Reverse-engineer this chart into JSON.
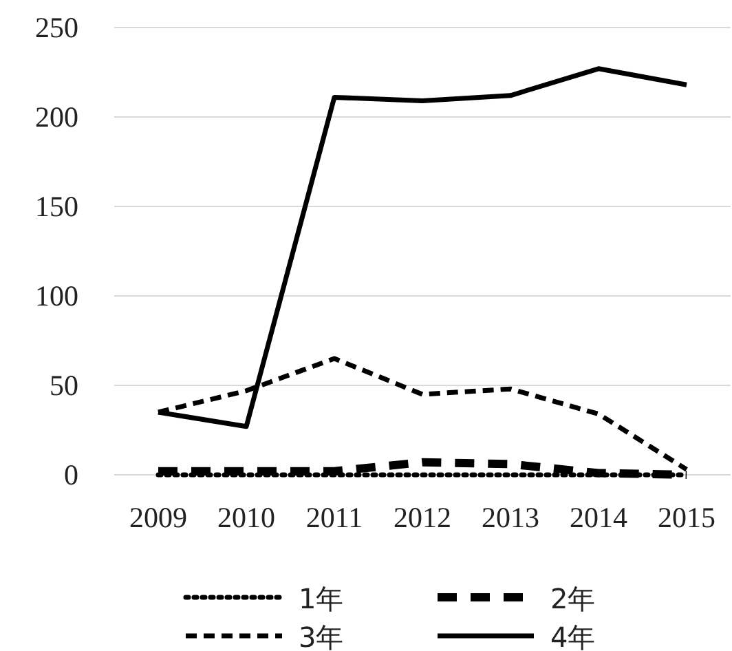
{
  "chart_data": {
    "type": "line",
    "categories": [
      "2009",
      "2010",
      "2011",
      "2012",
      "2013",
      "2014",
      "2015"
    ],
    "series": [
      {
        "name": "1年",
        "color": "#000000",
        "line_style": "dotted",
        "values": [
          0,
          0,
          0,
          0,
          0,
          0,
          0
        ]
      },
      {
        "name": "2年",
        "color": "#000000",
        "line_style": "dashed",
        "values": [
          2,
          2,
          2,
          7,
          6,
          1,
          0
        ]
      },
      {
        "name": "3年",
        "color": "#000000",
        "line_style": "dashed",
        "values": [
          35,
          47,
          65,
          45,
          48,
          34,
          3
        ]
      },
      {
        "name": "4年",
        "color": "#000000",
        "line_style": "solid",
        "values": [
          35,
          27,
          211,
          209,
          212,
          227,
          218
        ]
      }
    ],
    "ylim": [
      0,
      250
    ],
    "yticks": [
      0,
      50,
      100,
      150,
      200,
      250
    ],
    "grid": "y",
    "legend": "bottom",
    "marker": "none"
  }
}
